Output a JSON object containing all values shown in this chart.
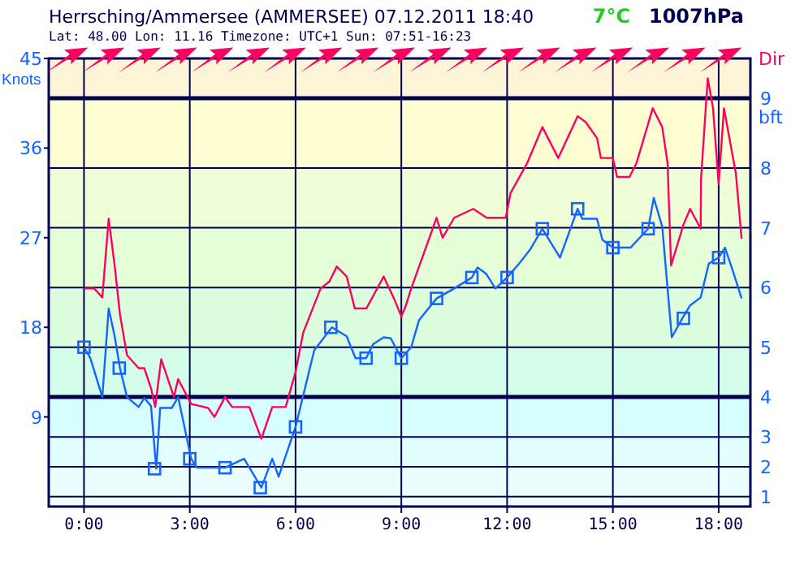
{
  "chart_data": {
    "type": "line",
    "title": "Herrsching/Ammersee (AMMERSEE) 07.12.2011 18:40",
    "subtitle": "Lat: 48.00 Lon: 11.16 Timezone: UTC+1 Sun: 07:51-16:23",
    "ylabel": "Knots",
    "y2label": "bft",
    "annotations": [
      "7°C",
      "1007hPa",
      "Dir"
    ],
    "xlim": [
      -1,
      18.9
    ],
    "xticks": [
      {
        "value": 0,
        "label": "0:00"
      },
      {
        "value": 3,
        "label": "3:00"
      },
      {
        "value": 6,
        "label": "6:00"
      },
      {
        "value": 9,
        "label": "9:00"
      },
      {
        "value": 12,
        "label": "12:00"
      },
      {
        "value": 15,
        "label": "15:00"
      },
      {
        "value": 18,
        "label": "18:00"
      }
    ],
    "ylim": [
      0,
      45
    ],
    "yticks": [
      9,
      18,
      27,
      36,
      45
    ],
    "grid": "x",
    "bands": [
      {
        "axis": "y",
        "from": 0,
        "to": 1,
        "color": "#f0fefe"
      },
      {
        "axis": "y",
        "from": 1,
        "to": 4,
        "color": "#eafefe",
        "label": "1"
      },
      {
        "axis": "y",
        "from": 4,
        "to": 7,
        "color": "#e2fefe",
        "label": "2"
      },
      {
        "axis": "y",
        "from": 7,
        "to": 11,
        "color": "#d6fefe",
        "label": "3"
      },
      {
        "axis": "y",
        "from": 11,
        "to": 16,
        "color": "#d4feea",
        "label": "4"
      },
      {
        "axis": "y",
        "from": 16,
        "to": 22,
        "color": "#dcfede",
        "label": "5"
      },
      {
        "axis": "y",
        "from": 22,
        "to": 28,
        "color": "#e6fed8",
        "label": "6"
      },
      {
        "axis": "y",
        "from": 28,
        "to": 34,
        "color": "#f0fed8",
        "label": "7"
      },
      {
        "axis": "y",
        "from": 34,
        "to": 41,
        "color": "#fefed2",
        "label": "8"
      },
      {
        "axis": "y",
        "from": 41,
        "to": 45,
        "color": "#fef4d8",
        "label": "9"
      }
    ],
    "ref_lines": [
      {
        "axis": "y",
        "value": 11,
        "color": "#000050"
      },
      {
        "axis": "y",
        "value": 41,
        "color": "#000050"
      }
    ],
    "series": [
      {
        "type": "line",
        "color": "#ff0060",
        "marker": "none",
        "x": [
          0,
          0.29,
          0.52,
          0.7,
          0.87,
          1.02,
          1.22,
          1.55,
          1.71,
          1.9,
          2.02,
          2.19,
          2.55,
          2.67,
          3.04,
          3.52,
          3.7,
          4.0,
          4.2,
          4.69,
          5.03,
          5.34,
          5.72,
          6.0,
          6.22,
          6.71,
          6.96,
          7.17,
          7.45,
          7.68,
          8.01,
          8.5,
          8.79,
          9.0,
          9.13,
          9.28,
          10.0,
          10.17,
          10.5,
          11.04,
          11.42,
          11.96,
          12.1,
          12.57,
          13.0,
          13.45,
          14.0,
          14.23,
          14.55,
          14.66,
          15.0,
          15.12,
          15.47,
          15.67,
          16.13,
          16.4,
          16.55,
          16.65,
          17.0,
          17.19,
          17.49,
          17.5,
          17.69,
          17.84,
          18.0,
          18.15,
          18.49,
          18.65
        ],
        "values": [
          21.9,
          21.9,
          21.0,
          28.9,
          24.2,
          19.3,
          15.2,
          13.9,
          13.9,
          11.9,
          10.0,
          14.8,
          11.0,
          12.8,
          10.3,
          9.9,
          9.0,
          11.0,
          10.0,
          10.0,
          6.8,
          10.0,
          10.0,
          13.5,
          17.5,
          21.9,
          22.6,
          24.1,
          23.1,
          19.9,
          19.9,
          23.1,
          20.9,
          19.1,
          20.2,
          21.9,
          29.0,
          27.0,
          29.0,
          29.9,
          29.0,
          29.0,
          31.5,
          34.5,
          38.1,
          35.0,
          39.2,
          38.6,
          37.0,
          35.0,
          35.0,
          33.1,
          33.1,
          34.5,
          40.0,
          38.1,
          34.5,
          24.2,
          28.3,
          29.9,
          27.9,
          32.9,
          43.0,
          40.0,
          32.4,
          40.0,
          33.4,
          26.9
        ]
      },
      {
        "type": "line",
        "color": "#1464ff",
        "marker": "none",
        "x": [
          0,
          0.18,
          0.52,
          0.7,
          0.87,
          1.02,
          1.22,
          1.55,
          1.71,
          1.9,
          2.05,
          2.16,
          2.49,
          2.67,
          3.04,
          3.21,
          4.0,
          4.54,
          5.03,
          5.34,
          5.52,
          6.0,
          6.53,
          7.03,
          7.45,
          7.7,
          8.0,
          8.2,
          8.5,
          8.7,
          9.0,
          9.28,
          9.5,
          10.0,
          10.5,
          11.0,
          11.16,
          11.4,
          11.67,
          12.0,
          12.34,
          12.65,
          13.0,
          13.5,
          14.0,
          14.13,
          14.55,
          14.7,
          15.0,
          15.5,
          16.0,
          16.16,
          16.4,
          16.67,
          16.97,
          17.19,
          17.49,
          17.72,
          18.0,
          18.18,
          18.4,
          18.65
        ],
        "values": [
          16.0,
          14.9,
          11.0,
          19.9,
          17.1,
          13.9,
          11.0,
          10.0,
          10.9,
          10.1,
          3.8,
          9.9,
          9.9,
          11.0,
          4.8,
          3.9,
          3.9,
          4.8,
          1.9,
          4.8,
          3.0,
          8.0,
          15.7,
          18.0,
          17.1,
          14.9,
          14.9,
          16.3,
          17.0,
          16.9,
          14.9,
          16.0,
          18.7,
          20.9,
          21.9,
          23.0,
          24.0,
          23.4,
          21.9,
          23.0,
          24.4,
          25.8,
          27.9,
          25.0,
          29.9,
          28.9,
          28.9,
          26.8,
          26.0,
          26.0,
          27.9,
          31.0,
          28.1,
          17.0,
          18.9,
          20.2,
          21.0,
          24.4,
          25.0,
          26.0,
          23.7,
          20.9
        ]
      },
      {
        "type": "scatter",
        "color": "#1464ff",
        "marker": "square",
        "x": [
          0,
          1,
          2,
          3,
          4,
          5,
          6,
          7,
          8,
          9,
          10,
          11,
          12,
          13,
          14,
          15,
          16,
          17,
          18
        ],
        "values": [
          16.0,
          13.9,
          3.8,
          4.8,
          3.9,
          1.9,
          8.0,
          18.0,
          14.9,
          14.9,
          20.9,
          23.0,
          23.0,
          27.9,
          29.9,
          26.0,
          27.9,
          18.9,
          25.0
        ]
      }
    ]
  }
}
